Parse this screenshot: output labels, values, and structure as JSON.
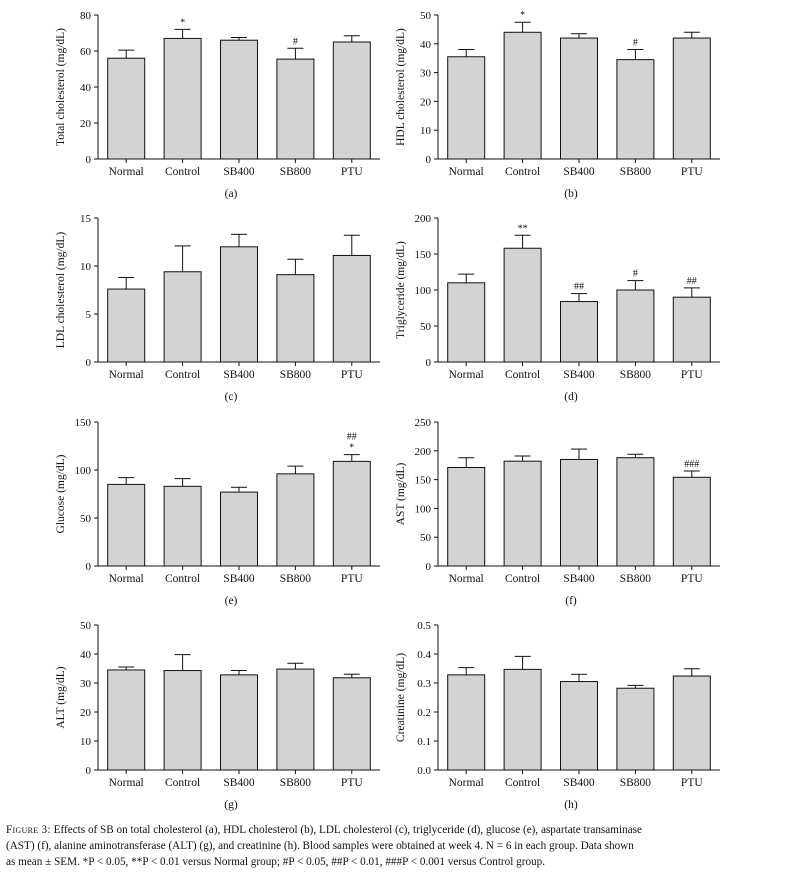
{
  "chart_data": [
    {
      "id": "a",
      "type": "bar",
      "panel_label": "(a)",
      "ylabel": "Total cholesterol (mg/dL)",
      "categories": [
        "Normal",
        "Control",
        "SB400",
        "SB800",
        "PTU"
      ],
      "values": [
        56,
        67,
        66,
        55.5,
        65
      ],
      "errors": [
        4.5,
        5,
        1.5,
        6,
        3.5
      ],
      "annotations": [
        "",
        "*",
        "",
        "#",
        ""
      ],
      "ylim": [
        0,
        80
      ],
      "yticks": [
        "0",
        "20",
        "40",
        "60",
        "80"
      ]
    },
    {
      "id": "b",
      "type": "bar",
      "panel_label": "(b)",
      "ylabel": "HDL cholesterol (mg/dL)",
      "categories": [
        "Normal",
        "Control",
        "SB400",
        "SB800",
        "PTU"
      ],
      "values": [
        35.5,
        44,
        42,
        34.5,
        42
      ],
      "errors": [
        2.5,
        3.5,
        1.5,
        3.5,
        2
      ],
      "annotations": [
        "",
        "*",
        "",
        "#",
        ""
      ],
      "ylim": [
        0,
        50
      ],
      "yticks": [
        "0",
        "10",
        "20",
        "30",
        "40",
        "50"
      ]
    },
    {
      "id": "c",
      "type": "bar",
      "panel_label": "(c)",
      "ylabel": "LDL cholesterol (mg/dL)",
      "categories": [
        "Normal",
        "Control",
        "SB400",
        "SB800",
        "PTU"
      ],
      "values": [
        7.6,
        9.4,
        12,
        9.1,
        11.1
      ],
      "errors": [
        1.2,
        2.7,
        1.3,
        1.6,
        2.1
      ],
      "annotations": [
        "",
        "",
        "",
        "",
        ""
      ],
      "ylim": [
        0,
        15
      ],
      "yticks": [
        "0",
        "5",
        "10",
        "15"
      ]
    },
    {
      "id": "d",
      "type": "bar",
      "panel_label": "(d)",
      "ylabel": "Triglyceride (mg/dL)",
      "categories": [
        "Normal",
        "Control",
        "SB400",
        "SB800",
        "PTU"
      ],
      "values": [
        110,
        158,
        84,
        100,
        90
      ],
      "errors": [
        12,
        18,
        11,
        13,
        13
      ],
      "annotations": [
        "",
        "**",
        "##",
        "#",
        "##"
      ],
      "ylim": [
        0,
        200
      ],
      "yticks": [
        "0",
        "50",
        "100",
        "150",
        "200"
      ]
    },
    {
      "id": "e",
      "type": "bar",
      "panel_label": "(e)",
      "ylabel": "Glucose (mg/dL)",
      "categories": [
        "Normal",
        "Control",
        "SB400",
        "SB800",
        "PTU"
      ],
      "values": [
        85,
        83,
        77,
        96,
        109
      ],
      "errors": [
        7,
        8,
        5,
        8,
        7
      ],
      "annotations": [
        "",
        "",
        "",
        "",
        "*|##"
      ],
      "ylim": [
        0,
        150
      ],
      "yticks": [
        "0",
        "50",
        "100",
        "150"
      ]
    },
    {
      "id": "f",
      "type": "bar",
      "panel_label": "(f)",
      "ylabel": "AST (mg/dL)",
      "categories": [
        "Normal",
        "Control",
        "SB400",
        "SB800",
        "PTU"
      ],
      "values": [
        171,
        182,
        185,
        188,
        154
      ],
      "errors": [
        17,
        9,
        18,
        6,
        11
      ],
      "annotations": [
        "",
        "",
        "",
        "",
        "###"
      ],
      "ylim": [
        0,
        250
      ],
      "yticks": [
        "0",
        "50",
        "100",
        "150",
        "200",
        "250"
      ]
    },
    {
      "id": "g",
      "type": "bar",
      "panel_label": "(g)",
      "ylabel": "ALT (mg/dL)",
      "categories": [
        "Normal",
        "Control",
        "SB400",
        "SB800",
        "PTU"
      ],
      "values": [
        34.5,
        34.3,
        32.8,
        34.8,
        31.8
      ],
      "errors": [
        1,
        5.5,
        1.5,
        2,
        1.2
      ],
      "annotations": [
        "",
        "",
        "",
        "",
        ""
      ],
      "ylim": [
        0,
        50
      ],
      "yticks": [
        "0",
        "10",
        "20",
        "30",
        "40",
        "50"
      ]
    },
    {
      "id": "h",
      "type": "bar",
      "panel_label": "(h)",
      "ylabel": "Creatinine (mg/dL)",
      "categories": [
        "Normal",
        "Control",
        "SB400",
        "SB800",
        "PTU"
      ],
      "values": [
        0.328,
        0.347,
        0.305,
        0.282,
        0.324
      ],
      "errors": [
        0.025,
        0.045,
        0.025,
        0.01,
        0.025
      ],
      "annotations": [
        "",
        "",
        "",
        "",
        ""
      ],
      "ylim": [
        0,
        0.5
      ],
      "yticks": [
        "0.0",
        "0.1",
        "0.2",
        "0.3",
        "0.4",
        "0.5"
      ]
    }
  ],
  "caption": {
    "figure_label": "Figure 3:",
    "line1": "Effects of SB on total cholesterol (a), HDL cholesterol (b), LDL cholesterol (c), triglyceride (d), glucose (e), aspartate transaminase",
    "line2": "(AST) (f), alanine aminotransferase (ALT) (g), and creatinine (h). Blood samples were obtained at week 4. N = 6 in each group. Data shown",
    "line3": "as mean ± SEM. *P < 0.05, **P < 0.01 versus Normal group; #P < 0.05, ##P < 0.01, ###P < 0.001 versus Control group."
  }
}
